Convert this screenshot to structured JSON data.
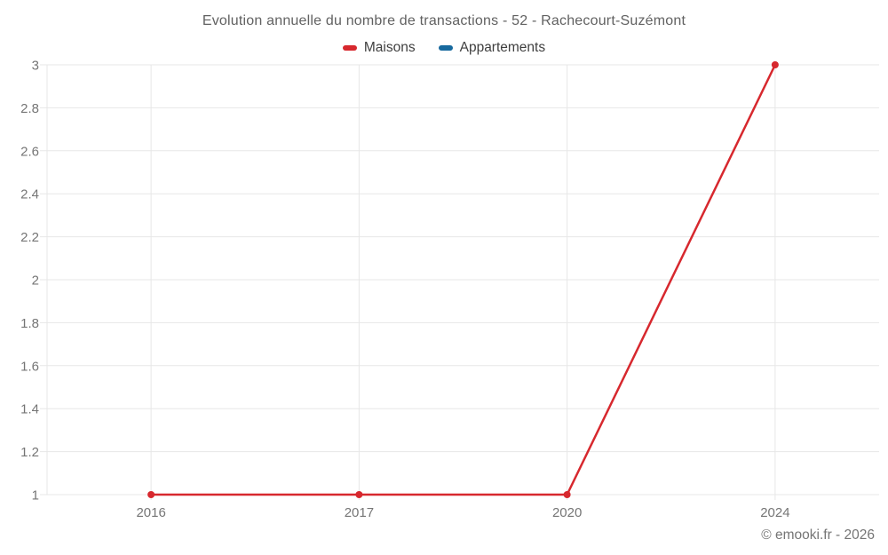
{
  "title": "Evolution annuelle du nombre de transactions - 52 - Rachecourt-Suzémont",
  "footer": "© emooki.fr - 2026",
  "colors": {
    "background": "#ffffff",
    "grid": "#e7e7e7",
    "tick_text": "#757575",
    "title_text": "#616161",
    "legend_text": "#3f3f3f",
    "footer_text": "#757575",
    "maisons_red": "#d7282e",
    "appartements_blue": "#17699e"
  },
  "chart_data": {
    "type": "line",
    "title": "Evolution annuelle du nombre de transactions - 52 - Rachecourt-Suzémont",
    "categories": [
      "2016",
      "2017",
      "2020",
      "2024"
    ],
    "series": [
      {
        "name": "Maisons",
        "color": "#d7282e",
        "values": [
          1,
          1,
          1,
          3
        ]
      },
      {
        "name": "Appartements",
        "color": "#17699e",
        "values": []
      }
    ],
    "xlabel": "",
    "ylabel": "",
    "ylim": [
      1,
      3
    ],
    "y_ticks": [
      1,
      1.2,
      1.4,
      1.6,
      1.8,
      2,
      2.2,
      2.4,
      2.6,
      2.8,
      3
    ],
    "y_tick_labels": [
      "1",
      "1.2",
      "1.4",
      "1.6",
      "1.8",
      "2",
      "2.2",
      "2.4",
      "2.6",
      "2.8",
      "3"
    ],
    "grid": true,
    "legend_position": "top",
    "point_markers": true
  }
}
